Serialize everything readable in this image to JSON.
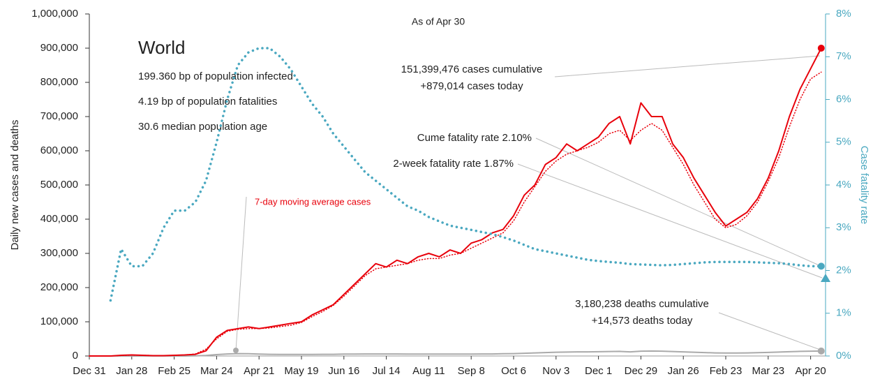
{
  "chart_data": {
    "type": "line",
    "categories": [
      "Dec 31",
      null,
      null,
      null,
      "Jan 28",
      null,
      null,
      null,
      "Feb 25",
      null,
      null,
      null,
      "Mar 24",
      null,
      null,
      null,
      "Apr 21",
      null,
      null,
      null,
      "May 19",
      null,
      null,
      null,
      "Jun 16",
      null,
      null,
      null,
      "Jul 14",
      null,
      null,
      null,
      "Aug 11",
      null,
      null,
      null,
      "Sep 8",
      null,
      null,
      null,
      "Oct 6",
      null,
      null,
      null,
      "Nov 3",
      null,
      null,
      null,
      "Dec 1",
      null,
      null,
      null,
      "Dec 29",
      null,
      null,
      null,
      "Jan 26",
      null,
      null,
      null,
      "Feb 23",
      null,
      null,
      null,
      "Mar 23",
      null,
      null,
      null,
      "Apr 20",
      null
    ],
    "series": [
      {
        "color": "#e8000b",
        "style": "solid",
        "values": [
          0,
          0,
          0,
          2000,
          3000,
          2000,
          1000,
          1000,
          2000,
          3000,
          5000,
          15000,
          55000,
          75000,
          80000,
          85000,
          80000,
          85000,
          90000,
          95000,
          100000,
          120000,
          135000,
          150000,
          180000,
          210000,
          240000,
          270000,
          260000,
          280000,
          270000,
          290000,
          300000,
          290000,
          310000,
          300000,
          330000,
          340000,
          360000,
          370000,
          410000,
          470000,
          500000,
          560000,
          580000,
          620000,
          600000,
          620000,
          640000,
          680000,
          700000,
          620000,
          740000,
          700000,
          700000,
          620000,
          580000,
          520000,
          470000,
          420000,
          380000,
          400000,
          420000,
          460000,
          520000,
          600000,
          700000,
          780000,
          840000,
          900000
        ]
      },
      {
        "name": "7-day moving average cases",
        "color": "#e8000b",
        "style": "dotted",
        "values": [
          0,
          0,
          0,
          1500,
          2500,
          2000,
          1500,
          1000,
          1500,
          3000,
          6000,
          20000,
          50000,
          72000,
          78000,
          80000,
          80000,
          82000,
          86000,
          90000,
          98000,
          115000,
          130000,
          148000,
          175000,
          205000,
          235000,
          255000,
          260000,
          265000,
          270000,
          280000,
          285000,
          285000,
          295000,
          300000,
          315000,
          330000,
          345000,
          360000,
          395000,
          450000,
          495000,
          540000,
          570000,
          590000,
          600000,
          610000,
          625000,
          650000,
          660000,
          630000,
          660000,
          680000,
          660000,
          610000,
          560000,
          500000,
          450000,
          400000,
          375000,
          385000,
          410000,
          450000,
          510000,
          580000,
          670000,
          750000,
          810000,
          830000
        ]
      },
      {
        "color": "#aaaaaa",
        "style": "solid",
        "values": [
          0,
          0,
          0,
          50,
          100,
          100,
          100,
          100,
          100,
          100,
          500,
          1500,
          4000,
          6000,
          7000,
          6500,
          5500,
          5000,
          4500,
          4500,
          4500,
          4500,
          4800,
          5000,
          5500,
          5500,
          6000,
          6000,
          6000,
          6000,
          5500,
          5500,
          5500,
          5500,
          5500,
          5500,
          5500,
          6000,
          6000,
          6500,
          7000,
          8000,
          9000,
          10000,
          11000,
          11500,
          12000,
          12000,
          12500,
          13000,
          13500,
          12000,
          14000,
          14500,
          14000,
          13000,
          12000,
          11000,
          10000,
          9000,
          8500,
          8500,
          9000,
          9500,
          10500,
          11500,
          12500,
          13500,
          14000,
          14500
        ]
      },
      {
        "color": "#4aa8c0",
        "style": "dotted",
        "axis": "y2",
        "values": [
          null,
          null,
          1.3,
          2.5,
          2.1,
          2.1,
          2.4,
          3.0,
          3.4,
          3.4,
          3.6,
          4.1,
          5.0,
          6.0,
          6.8,
          7.1,
          7.2,
          7.2,
          7.0,
          6.7,
          6.3,
          5.9,
          5.6,
          5.2,
          4.9,
          4.6,
          4.3,
          4.1,
          3.9,
          3.7,
          3.5,
          3.4,
          3.25,
          3.15,
          3.05,
          3.0,
          2.95,
          2.9,
          2.85,
          2.78,
          2.7,
          2.6,
          2.5,
          2.45,
          2.4,
          2.35,
          2.3,
          2.25,
          2.22,
          2.2,
          2.18,
          2.15,
          2.14,
          2.13,
          2.12,
          2.13,
          2.15,
          2.17,
          2.19,
          2.2,
          2.2,
          2.2,
          2.2,
          2.19,
          2.18,
          2.17,
          2.15,
          2.12,
          2.1,
          2.1
        ]
      }
    ],
    "ylabel": "Daily new cases and deaths",
    "y2label": "Case fatality rate",
    "ylim": [
      0,
      1000000
    ],
    "yticks": [
      0,
      {
        "value": 100000,
        "label": "100,000"
      },
      {
        "value": 200000,
        "label": "200,000"
      },
      {
        "value": 300000,
        "label": "300,000"
      },
      {
        "value": 400000,
        "label": "400,000"
      },
      {
        "value": 500000,
        "label": "500,000"
      },
      {
        "value": 600000,
        "label": "600,000"
      },
      {
        "value": 700000,
        "label": "700,000"
      },
      {
        "value": 800000,
        "label": "800,000"
      },
      {
        "value": 900000,
        "label": "900,000"
      },
      {
        "value": 1000000,
        "label": "1,000,000"
      }
    ],
    "y2lim": [
      0,
      8
    ],
    "y2ticks": [
      {
        "value": 0,
        "label": "0%"
      },
      {
        "value": 1,
        "label": "1%"
      },
      {
        "value": 2,
        "label": "2%"
      },
      {
        "value": 3,
        "label": "3%"
      },
      {
        "value": 4,
        "label": "4%"
      },
      {
        "value": 5,
        "label": "5%"
      },
      {
        "value": 6,
        "label": "6%"
      },
      {
        "value": 7,
        "label": "7%"
      },
      {
        "value": 8,
        "label": "8%"
      }
    ],
    "grid": false,
    "annotations": {
      "as_of": "As of Apr 30",
      "region": "World",
      "stats": [
        "199.360 bp of population infected",
        "4.19 bp of population fatalities",
        "30.6 median population age"
      ],
      "cases_cum": "151,399,476 cases cumulative",
      "cases_today": "+879,014 cases today",
      "cume_cfr": "Cume fatality rate 2.10%",
      "two_week_cfr": "2-week fatality rate 1.87%",
      "deaths_cum": "3,180,238 deaths cumulative",
      "deaths_today": "+14,573 deaths today"
    }
  }
}
